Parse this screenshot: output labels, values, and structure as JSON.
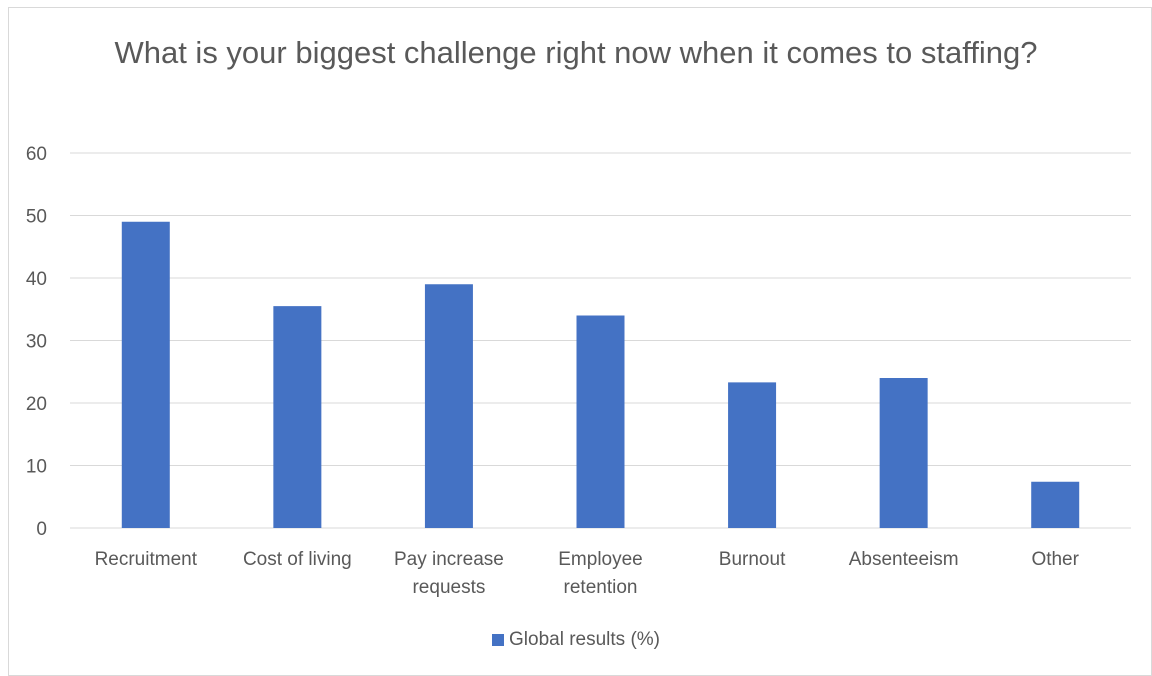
{
  "chart_data": {
    "type": "bar",
    "title": "What is your biggest challenge right now when it comes to staffing?",
    "categories": [
      [
        "Recruitment"
      ],
      [
        "Cost of living"
      ],
      [
        "Pay increase",
        "requests"
      ],
      [
        "Employee",
        "retention"
      ],
      [
        "Burnout"
      ],
      [
        "Absenteeism"
      ],
      [
        "Other"
      ]
    ],
    "series": [
      {
        "name": "Global results (%)",
        "color": "#4472c4",
        "values": [
          49,
          35.5,
          39,
          34,
          23.3,
          24,
          7.4
        ]
      }
    ],
    "ylim": [
      0,
      60
    ],
    "yticks": [
      0,
      10,
      20,
      30,
      40,
      50,
      60
    ],
    "grid": true,
    "legend_position": "bottom"
  }
}
